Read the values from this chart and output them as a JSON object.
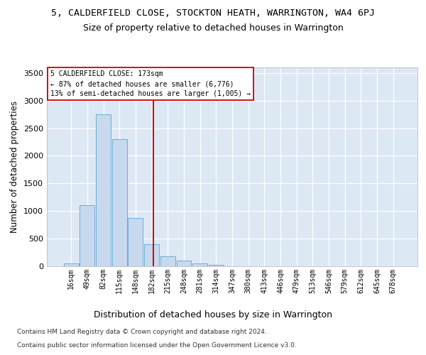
{
  "title1": "5, CALDERFIELD CLOSE, STOCKTON HEATH, WARRINGTON, WA4 6PJ",
  "title2": "Size of property relative to detached houses in Warrington",
  "xlabel": "Distribution of detached houses by size in Warrington",
  "ylabel": "Number of detached properties",
  "footnote1": "Contains HM Land Registry data © Crown copyright and database right 2024.",
  "footnote2": "Contains public sector information licensed under the Open Government Licence v3.0.",
  "bin_labels": [
    "16sqm",
    "49sqm",
    "82sqm",
    "115sqm",
    "148sqm",
    "182sqm",
    "215sqm",
    "248sqm",
    "281sqm",
    "314sqm",
    "347sqm",
    "380sqm",
    "413sqm",
    "446sqm",
    "479sqm",
    "513sqm",
    "546sqm",
    "579sqm",
    "612sqm",
    "645sqm",
    "678sqm"
  ],
  "bar_values": [
    50,
    1100,
    2750,
    2300,
    880,
    400,
    175,
    100,
    50,
    20,
    5,
    3,
    2,
    1,
    0,
    0,
    0,
    0,
    0,
    0,
    0
  ],
  "bar_color": "#c8d9ee",
  "bar_edge_color": "#6baed6",
  "property_line_x": 5.1,
  "property_line_color": "#cc0000",
  "annotation_line1": "5 CALDERFIELD CLOSE: 173sqm",
  "annotation_line2": "← 87% of detached houses are smaller (6,776)",
  "annotation_line3": "13% of semi-detached houses are larger (1,005) →",
  "annotation_box_color": "#ffffff",
  "annotation_box_edge": "#cc0000",
  "ylim": [
    0,
    3600
  ],
  "yticks": [
    0,
    500,
    1000,
    1500,
    2000,
    2500,
    3000,
    3500
  ],
  "background_color": "#ffffff",
  "plot_background": "#dde8f5",
  "grid_color": "#ffffff",
  "title1_fontsize": 9.5,
  "title2_fontsize": 9,
  "xlabel_fontsize": 9,
  "ylabel_fontsize": 8.5,
  "tick_fontsize": 7,
  "footnote_fontsize": 6.5
}
